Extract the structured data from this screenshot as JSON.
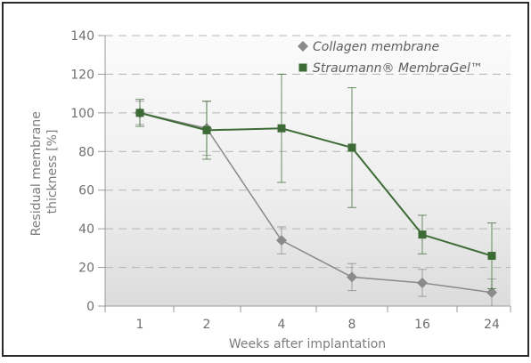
{
  "chart_data": {
    "type": "line",
    "categories": [
      "1",
      "2",
      "4",
      "8",
      "16",
      "24"
    ],
    "ylabel": "Residual membrane thickness [%]",
    "xlabel": "Weeks after implantation",
    "ylim": [
      0,
      140
    ],
    "yticks": [
      0,
      20,
      40,
      60,
      80,
      100,
      120,
      140
    ],
    "grid": "horizontal dashed",
    "legend_position": "top-right",
    "series": [
      {
        "name": "Collagen membrane",
        "marker": "diamond",
        "color": "#8a8a8a",
        "values": [
          100,
          92,
          34,
          15,
          12,
          7
        ],
        "error": [
          6,
          14,
          7,
          7,
          7,
          7
        ]
      },
      {
        "name": "Straumann® MembraGel™",
        "marker": "square",
        "color": "#3d6b35",
        "values": [
          100,
          91,
          92,
          82,
          37,
          26
        ],
        "error": [
          7,
          15,
          28,
          31,
          10,
          17
        ]
      }
    ]
  }
}
